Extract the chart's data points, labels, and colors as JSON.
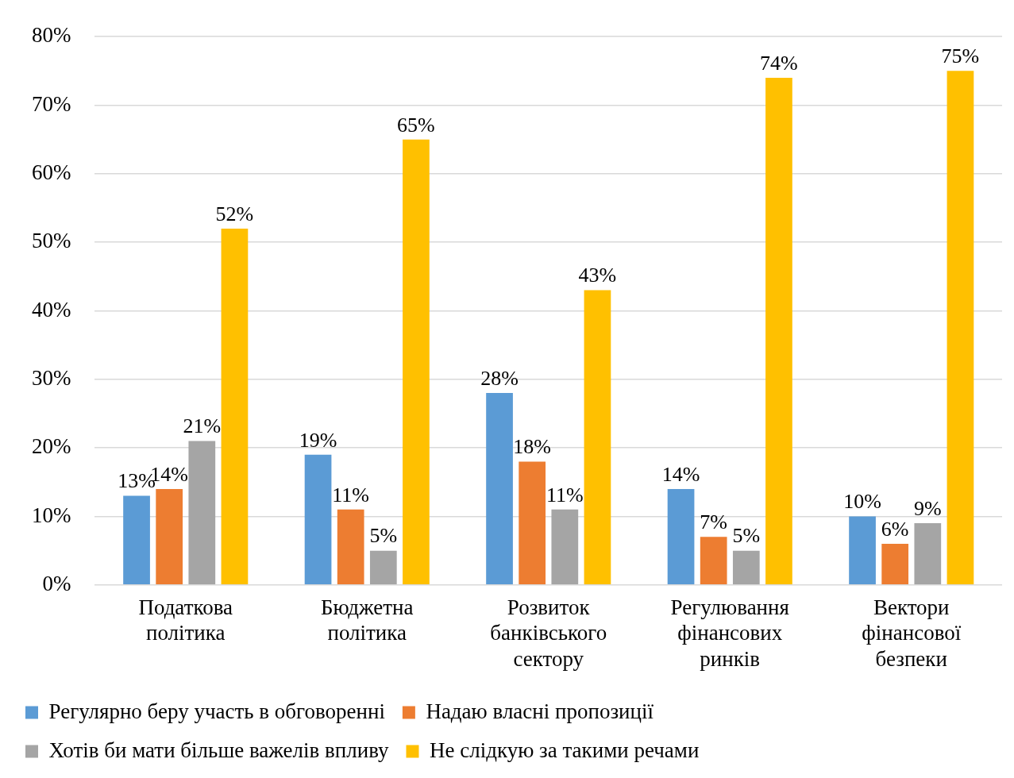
{
  "chart_data": {
    "type": "bar",
    "categories": [
      "Податкова політика",
      "Бюджетна політика",
      "Розвиток банківського сектору",
      "Регулювання фінансових ринків",
      "Вектори фінансової безпеки"
    ],
    "series": [
      {
        "name": "Регулярно беру участь в обговоренні",
        "color": "#5b9bd5",
        "values": [
          13,
          19,
          28,
          14,
          10
        ],
        "value_labels": [
          "13%",
          "19%",
          "28%",
          "14%",
          "10%"
        ]
      },
      {
        "name": "Надаю власні пропозиції",
        "color": "#ed7d31",
        "values": [
          14,
          11,
          18,
          7,
          6
        ],
        "value_labels": [
          "14%",
          "11%",
          "18%",
          "7%",
          "6%"
        ]
      },
      {
        "name": "Хотів би мати більше важелів впливу",
        "color": "#a5a5a5",
        "values": [
          21,
          5,
          11,
          5,
          9
        ],
        "value_labels": [
          "21%",
          "5%",
          "11%",
          "5%",
          "9%"
        ]
      },
      {
        "name": "Не слідкую за такими речами",
        "color": "#ffc000",
        "values": [
          52,
          65,
          43,
          74,
          75
        ],
        "value_labels": [
          "52%",
          "65%",
          "43%",
          "74%",
          "75%"
        ]
      }
    ],
    "ylim": [
      0,
      80
    ],
    "yticks": [
      {
        "value": 0,
        "label": "0%"
      },
      {
        "value": 10,
        "label": "10%"
      },
      {
        "value": 20,
        "label": "20%"
      },
      {
        "value": 30,
        "label": "30%"
      },
      {
        "value": 40,
        "label": "40%"
      },
      {
        "value": 50,
        "label": "50%"
      },
      {
        "value": 60,
        "label": "60%"
      },
      {
        "value": 70,
        "label": "70%"
      },
      {
        "value": 80,
        "label": "80%"
      }
    ],
    "grid": "y",
    "legend": "bottom"
  }
}
